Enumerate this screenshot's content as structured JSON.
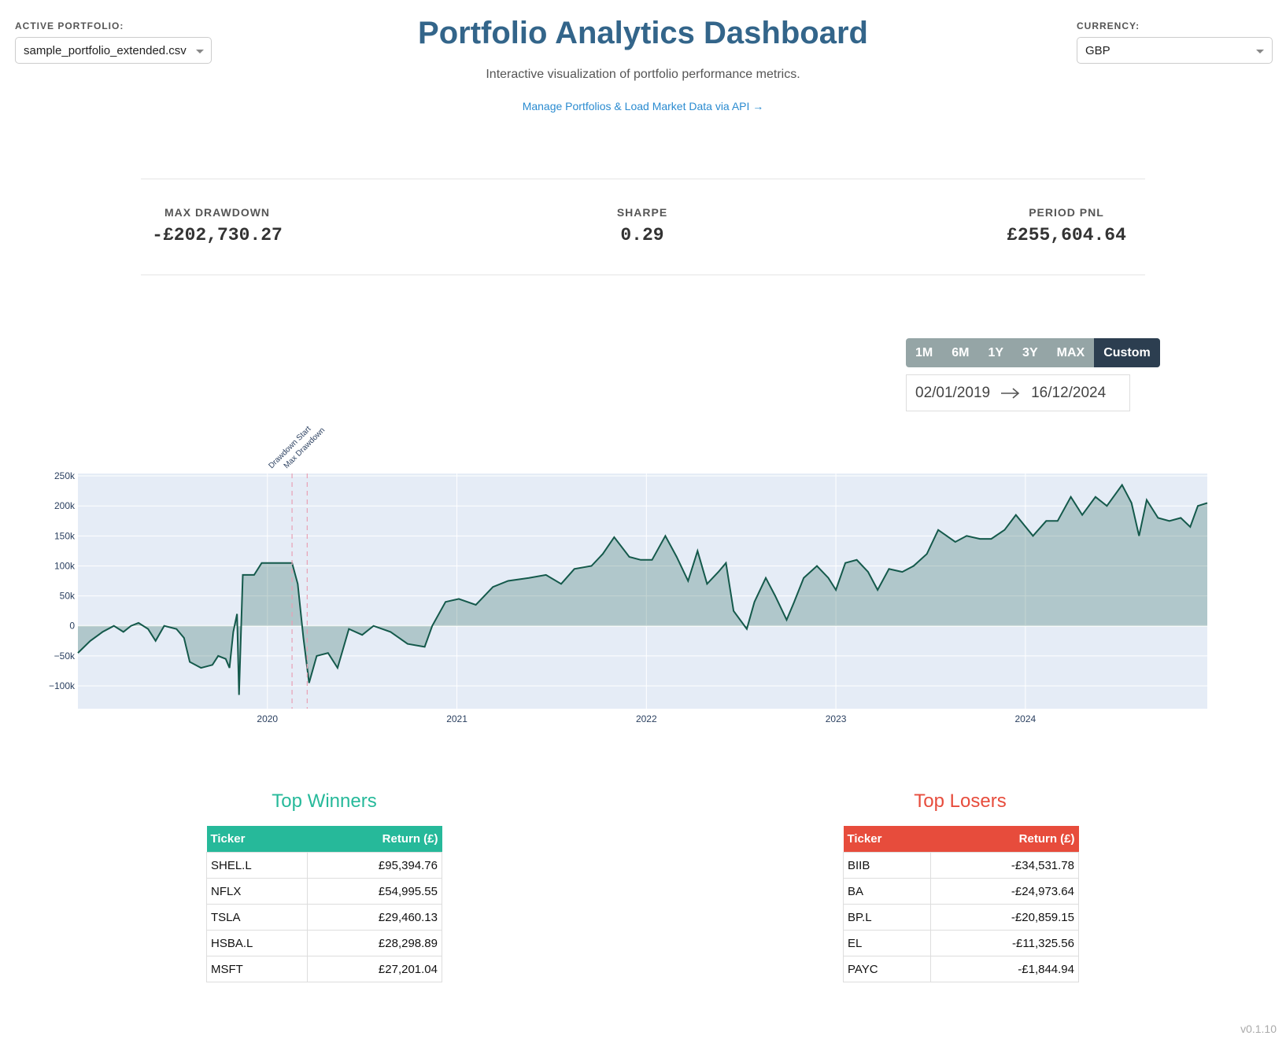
{
  "header": {
    "portfolio_label": "ACTIVE PORTFOLIO:",
    "portfolio": "sample_portfolio_extended.csv",
    "title": "Portfolio Analytics Dashboard",
    "subtitle": "Interactive visualization of portfolio performance metrics.",
    "link": "Manage Portfolios & Load Market Data via API →",
    "currency_label": "CURRENCY:",
    "currency": "GBP"
  },
  "metrics": [
    {
      "label": "MAX DRAWDOWN",
      "value": "-£202,730.27"
    },
    {
      "label": "SHARPE",
      "value": "0.29"
    },
    {
      "label": "PERIOD PNL",
      "value": "£255,604.64"
    }
  ],
  "range_buttons": [
    "1M",
    "6M",
    "1Y",
    "3Y",
    "MAX",
    "Custom"
  ],
  "selected_range": "Custom",
  "date_range": {
    "start": "02/01/2019",
    "end": "16/12/2024"
  },
  "chart_data": {
    "type": "line",
    "color": "#14594b",
    "fill": true,
    "grid": true,
    "x": [
      2019.0,
      2019.065,
      2019.13,
      2019.19,
      2019.24,
      2019.28,
      2019.32,
      2019.37,
      2019.41,
      2019.455,
      2019.52,
      2019.56,
      2019.59,
      2019.65,
      2019.71,
      2019.74,
      2019.78,
      2019.8,
      2019.82,
      2019.84,
      2019.85,
      2019.87,
      2019.93,
      2019.97,
      2020.065,
      2020.13,
      2020.16,
      2020.19,
      2020.22,
      2020.26,
      2020.32,
      2020.37,
      2020.43,
      2020.5,
      2020.56,
      2020.65,
      2020.74,
      2020.83,
      2020.87,
      2020.94,
      2021.01,
      2021.1,
      2021.19,
      2021.27,
      2021.38,
      2021.47,
      2021.55,
      2021.62,
      2021.71,
      2021.77,
      2021.83,
      2021.91,
      2021.97,
      2022.03,
      2022.1,
      2022.16,
      2022.22,
      2022.27,
      2022.32,
      2022.38,
      2022.42,
      2022.46,
      2022.53,
      2022.57,
      2022.63,
      2022.68,
      2022.74,
      2022.78,
      2022.83,
      2022.9,
      2022.96,
      2023.0,
      2023.05,
      2023.11,
      2023.17,
      2023.22,
      2023.28,
      2023.35,
      2023.41,
      2023.48,
      2023.54,
      2023.63,
      2023.69,
      2023.76,
      2023.82,
      2023.89,
      2023.95,
      2024.04,
      2024.11,
      2024.17,
      2024.24,
      2024.3,
      2024.37,
      2024.43,
      2024.51,
      2024.56,
      2024.6,
      2024.64,
      2024.7,
      2024.76,
      2024.82,
      2024.87,
      2024.91,
      2024.96
    ],
    "values": [
      -45000,
      -25000,
      -10000,
      0,
      -10000,
      0,
      5000,
      -5000,
      -25000,
      0,
      -5000,
      -20000,
      -60000,
      -70000,
      -65000,
      -50000,
      -55000,
      -70000,
      -10000,
      20000,
      -115000,
      85000,
      85000,
      105000,
      105000,
      105000,
      70000,
      -20000,
      -95000,
      -50000,
      -45000,
      -70000,
      -5000,
      -15000,
      0,
      -10000,
      -30000,
      -35000,
      0,
      40000,
      45000,
      35000,
      65000,
      75000,
      80000,
      85000,
      70000,
      95000,
      100000,
      120000,
      148000,
      115000,
      110000,
      110000,
      150000,
      115000,
      75000,
      125000,
      70000,
      90000,
      105000,
      25000,
      -5000,
      40000,
      80000,
      50000,
      10000,
      40000,
      80000,
      100000,
      80000,
      60000,
      105000,
      110000,
      90000,
      60000,
      95000,
      90000,
      100000,
      120000,
      160000,
      140000,
      150000,
      145000,
      145000,
      160000,
      185000,
      150000,
      175000,
      175000,
      215000,
      185000,
      215000,
      200000,
      235000,
      205000,
      150000,
      210000,
      180000,
      175000,
      180000,
      165000,
      200000,
      205000
    ],
    "xlim": [
      2019.0,
      2024.96
    ],
    "xticks": [
      2020,
      2021,
      2022,
      2023,
      2024
    ],
    "ylim": [
      -138000,
      254000
    ],
    "yticks": [
      {
        "value": -100000,
        "label": "−100k"
      },
      {
        "value": -50000,
        "label": "−50k"
      },
      0,
      {
        "value": 50000,
        "label": "50k"
      },
      {
        "value": 100000,
        "label": "100k"
      },
      {
        "value": 150000,
        "label": "150k"
      },
      {
        "value": 200000,
        "label": "200k"
      },
      {
        "value": 250000,
        "label": "250k"
      }
    ],
    "annotations": [
      {
        "x": 2020.13,
        "text": "Drawdown Start"
      },
      {
        "x": 2020.21,
        "text": "Max Drawdown"
      }
    ]
  },
  "winners": {
    "title": "Top Winners",
    "color": "#26b99a",
    "columns": [
      "Ticker",
      "Return (£)"
    ],
    "rows": [
      [
        "SHEL.L",
        "£95,394.76"
      ],
      [
        "NFLX",
        "£54,995.55"
      ],
      [
        "TSLA",
        "£29,460.13"
      ],
      [
        "HSBA.L",
        "£28,298.89"
      ],
      [
        "MSFT",
        "£27,201.04"
      ]
    ]
  },
  "losers": {
    "title": "Top Losers",
    "color": "#e74c3c",
    "columns": [
      "Ticker",
      "Return (£)"
    ],
    "rows": [
      [
        "BIIB",
        "-£34,531.78"
      ],
      [
        "BA",
        "-£24,973.64"
      ],
      [
        "BP.L",
        "-£20,859.15"
      ],
      [
        "EL",
        "-£11,325.56"
      ],
      [
        "PAYC",
        "-£1,844.94"
      ]
    ]
  },
  "version": "v0.1.10"
}
